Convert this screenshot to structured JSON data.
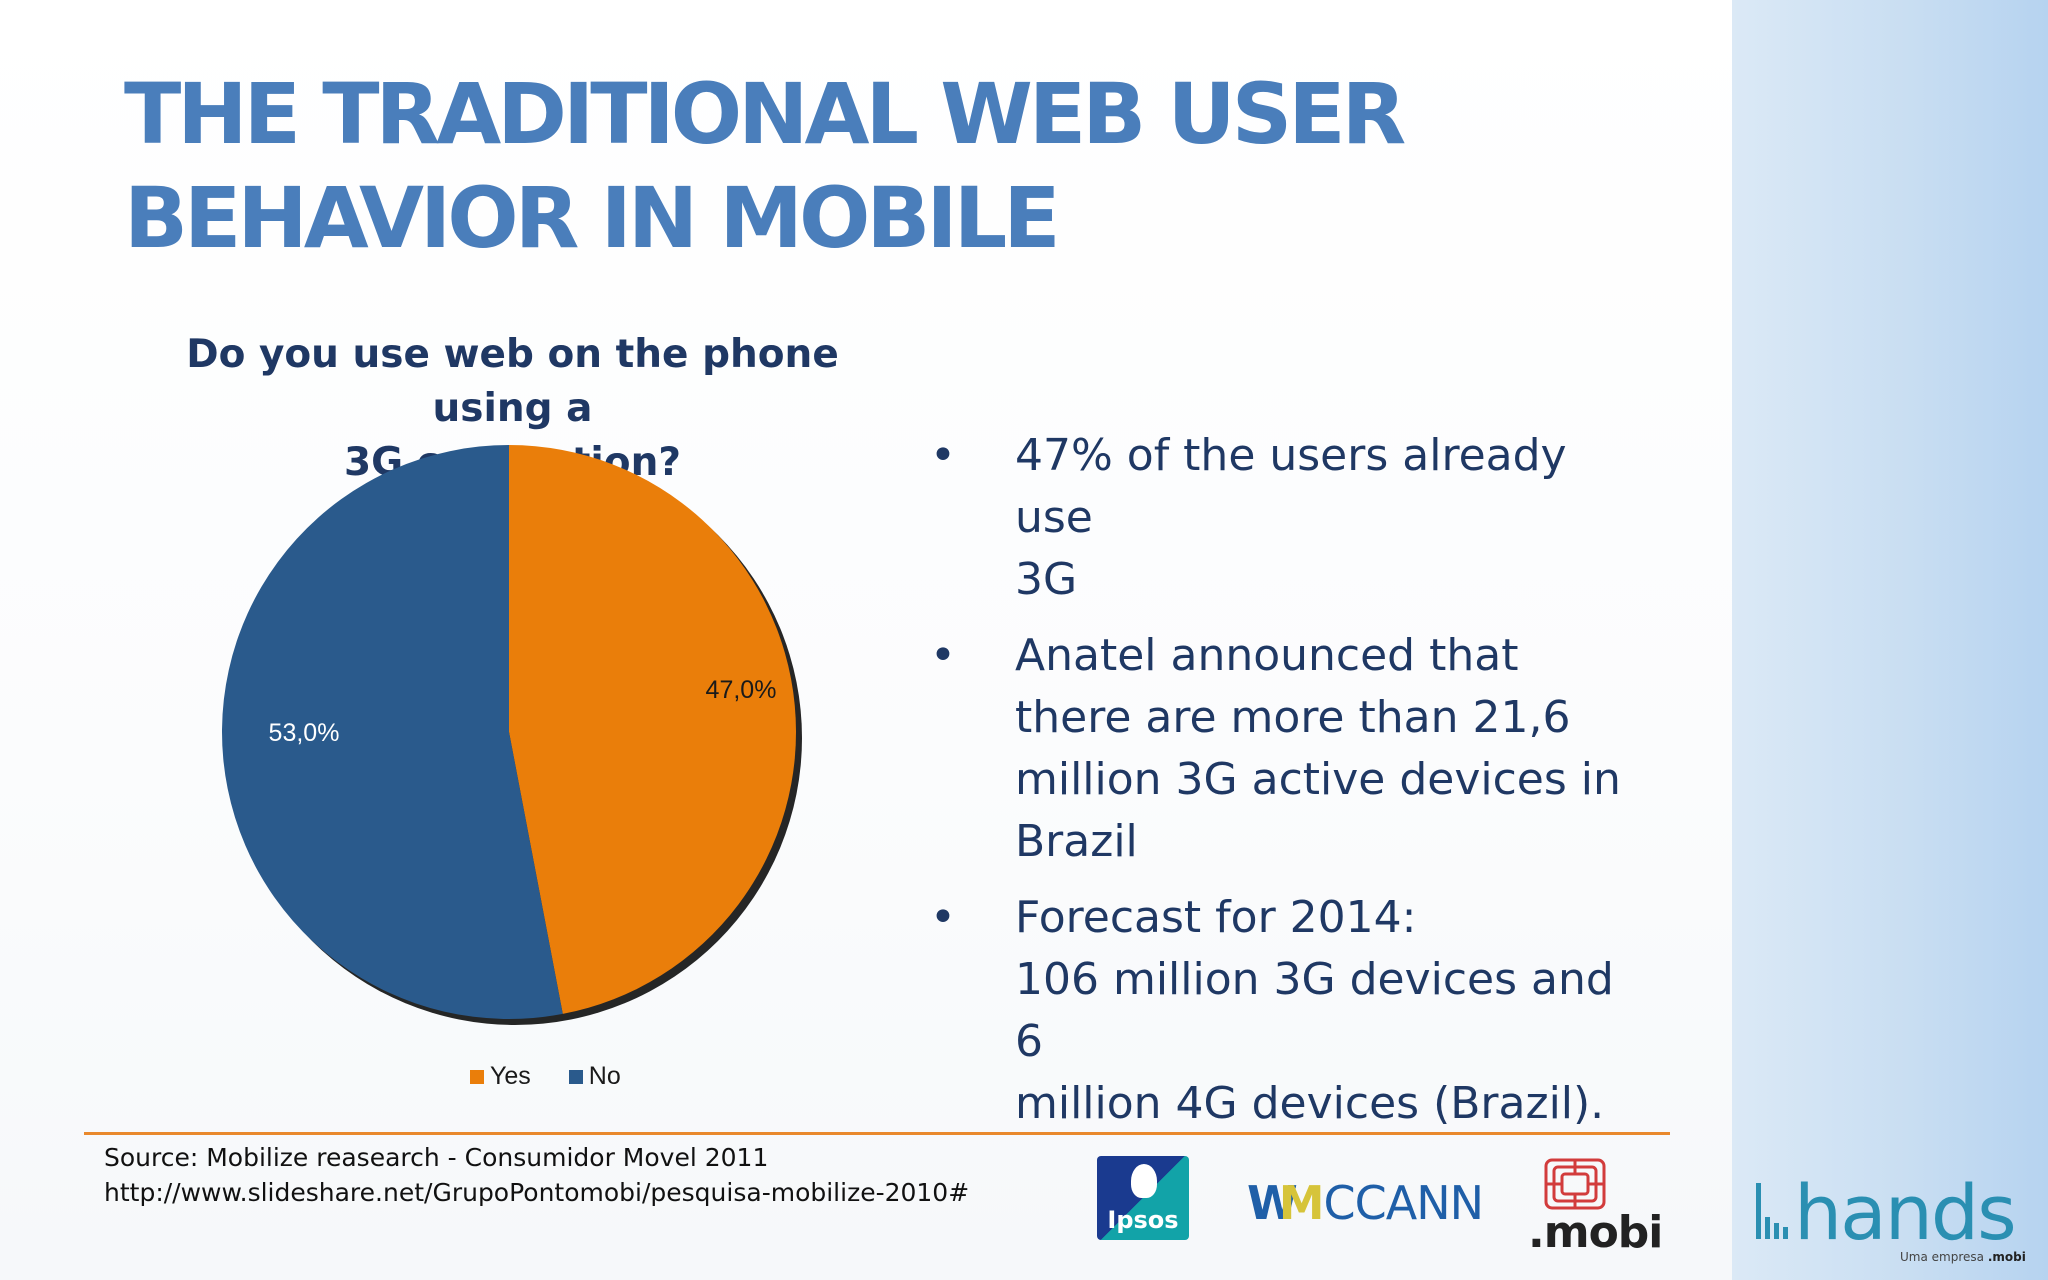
{
  "slide": {
    "title_line1": "THE TRADITIONAL WEB USER",
    "title_line2": "BEHAVIOR IN MOBILE"
  },
  "chart_data": {
    "type": "pie",
    "title_line1": "Do you use web on the phone using a",
    "title_line2": "3G connection?",
    "categories": [
      "Yes",
      "No"
    ],
    "values": [
      47.0,
      53.0
    ],
    "data_labels": [
      "47,0%",
      "53,0%"
    ],
    "colors": [
      "#ea7e0a",
      "#2a5a8c"
    ],
    "legend_position": "bottom"
  },
  "bullets": [
    {
      "marker": "•",
      "lines": [
        "47% of the users already use",
        "3G"
      ]
    },
    {
      "marker": "•",
      "lines": [
        "Anatel announced that",
        "there are more than 21,6",
        "million 3G active devices in",
        "Brazil"
      ]
    },
    {
      "marker": "•",
      "lines": [
        "Forecast for 2014:",
        "106 million 3G devices and 6",
        "million 4G devices (Brazil)."
      ]
    }
  ],
  "source": {
    "line1": "Source: Mobilize reasearch - Consumidor Movel 2011",
    "line2": "http://www.slideshare.net/GrupoPontomobi/pesquisa-mobilize-2010#"
  },
  "logos": {
    "ipsos": "Ipsos",
    "wmccann_w": "W",
    "wmccann_m": "M",
    "wmccann_rest": "CCANN",
    "mobi": ".mobi",
    "hands": "hands",
    "tagline_prefix": "Uma empresa",
    "tagline_brand": ".mobi"
  },
  "colors": {
    "title": "#4a7ebb",
    "text": "#1f3864",
    "divider": "#e9892c",
    "side_panel": "#c9def2"
  }
}
